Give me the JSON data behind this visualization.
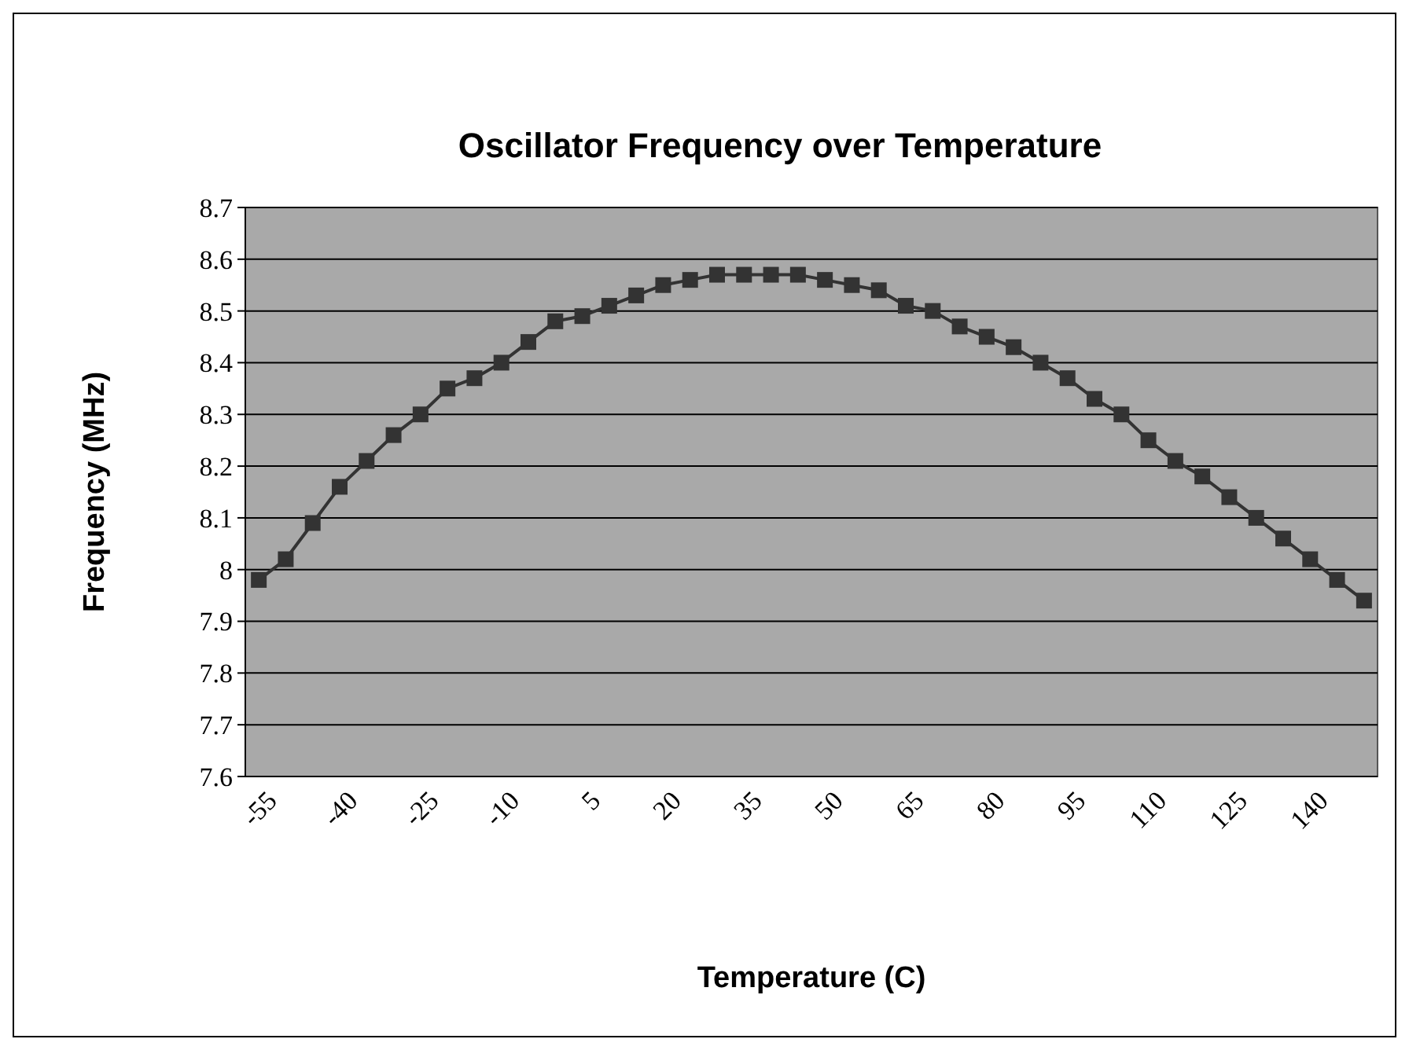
{
  "chart_data": {
    "type": "line",
    "title": "Oscillator Frequency over Temperature",
    "xlabel": "Temperature (C)",
    "ylabel": "Frequency (MHz)",
    "categories": [
      "-55",
      null,
      null,
      "-40",
      null,
      null,
      "-25",
      null,
      null,
      "-10",
      null,
      null,
      "5",
      null,
      null,
      "20",
      null,
      null,
      "35",
      null,
      null,
      "50",
      null,
      null,
      "65",
      null,
      null,
      "80",
      null,
      null,
      "95",
      null,
      null,
      "110",
      null,
      null,
      "125",
      null,
      null,
      "140",
      null,
      null
    ],
    "series": [
      {
        "color": "#333333",
        "values": [
          7.98,
          8.02,
          8.09,
          8.16,
          8.21,
          8.26,
          8.3,
          8.35,
          8.37,
          8.4,
          8.44,
          8.48,
          8.49,
          8.51,
          8.53,
          8.55,
          8.56,
          8.57,
          8.57,
          8.57,
          8.57,
          8.56,
          8.55,
          8.54,
          8.51,
          8.5,
          8.47,
          8.45,
          8.43,
          8.4,
          8.37,
          8.33,
          8.3,
          8.25,
          8.21,
          8.18,
          8.14,
          8.1,
          8.06,
          8.02,
          7.98,
          7.94
        ]
      }
    ],
    "ylim": [
      7.6,
      8.7
    ],
    "yticks": [
      7.6,
      7.7,
      7.8,
      7.9,
      8,
      8.1,
      8.2,
      8.3,
      8.4,
      8.5,
      8.6,
      8.7
    ],
    "grid": "y",
    "marker": "square",
    "line_style": "solid"
  }
}
